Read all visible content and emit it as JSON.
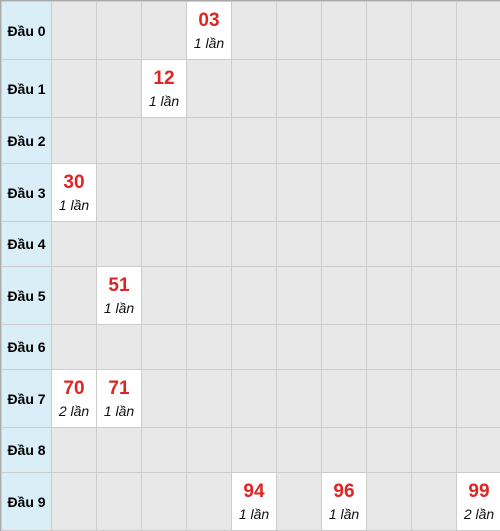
{
  "rows": [
    {
      "label": "Đầu 0",
      "hits": [
        {
          "col": 3,
          "num": "03",
          "count": "1 lần"
        }
      ]
    },
    {
      "label": "Đầu 1",
      "hits": [
        {
          "col": 2,
          "num": "12",
          "count": "1 lần"
        }
      ]
    },
    {
      "label": "Đầu 2",
      "hits": []
    },
    {
      "label": "Đầu 3",
      "hits": [
        {
          "col": 0,
          "num": "30",
          "count": "1 lần"
        }
      ]
    },
    {
      "label": "Đầu 4",
      "hits": []
    },
    {
      "label": "Đầu 5",
      "hits": [
        {
          "col": 1,
          "num": "51",
          "count": "1 lần"
        }
      ]
    },
    {
      "label": "Đầu 6",
      "hits": []
    },
    {
      "label": "Đầu 7",
      "hits": [
        {
          "col": 0,
          "num": "70",
          "count": "2 lần"
        },
        {
          "col": 1,
          "num": "71",
          "count": "1 lần"
        }
      ]
    },
    {
      "label": "Đầu 8",
      "hits": []
    },
    {
      "label": "Đầu 9",
      "hits": [
        {
          "col": 4,
          "num": "94",
          "count": "1 lần"
        },
        {
          "col": 6,
          "num": "96",
          "count": "1 lần"
        },
        {
          "col": 9,
          "num": "99",
          "count": "2 lần"
        }
      ]
    }
  ],
  "colors": {
    "number": "#e02424",
    "label_bg": "#d9eef6",
    "empty_bg": "#e8e8e8",
    "hit_bg": "#ffffff"
  }
}
